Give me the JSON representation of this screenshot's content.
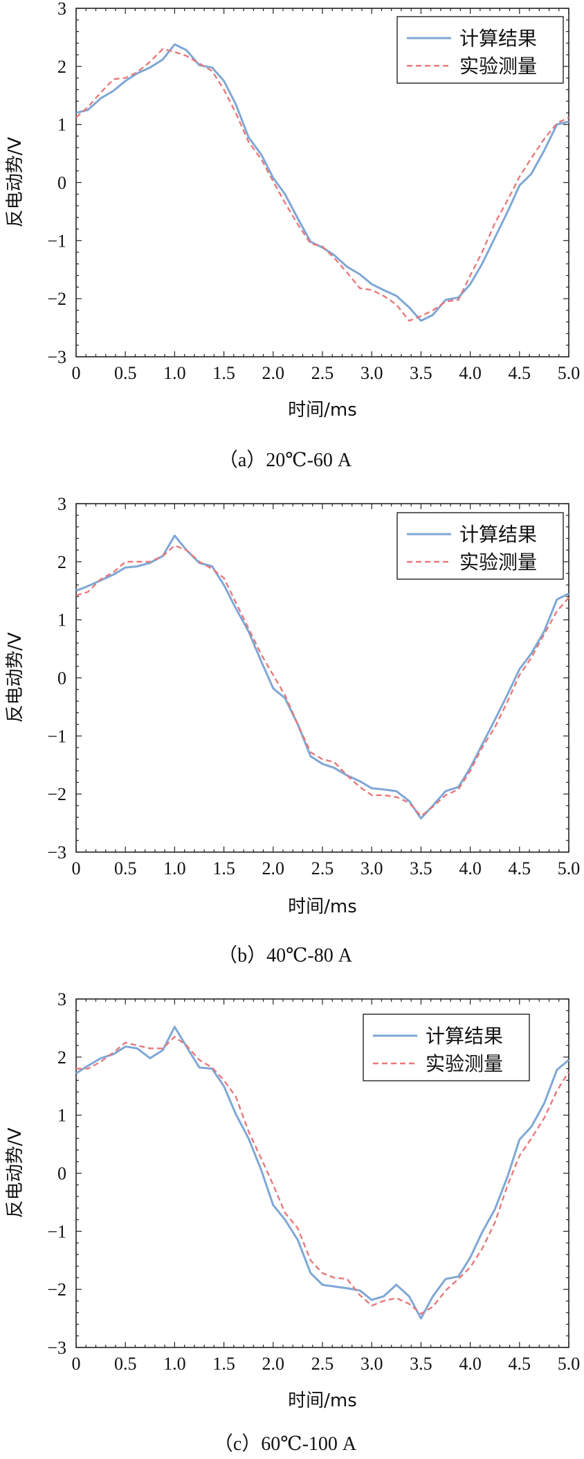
{
  "chart_data": [
    {
      "type": "line",
      "caption": "（a）20℃-60 A",
      "xlabel": "时间/ms",
      "ylabel": "反电动势/V",
      "xlim": [
        0,
        5.0
      ],
      "ylim": [
        -3,
        3
      ],
      "xticks": [
        "0",
        "0.5",
        "1.0",
        "1.5",
        "2.0",
        "2.5",
        "3.0",
        "3.5",
        "4.0",
        "4.5",
        "5.0"
      ],
      "yticks": [
        "3",
        "2",
        "1",
        "0",
        "−1",
        "−2",
        "−3"
      ],
      "legend_position": "top-right",
      "series": [
        {
          "name": "计算结果",
          "color": "#7ea7d6",
          "dash": "solid",
          "points": [
            [
              0,
              1.2
            ],
            [
              0.12,
              1.25
            ],
            [
              0.25,
              1.45
            ],
            [
              0.38,
              1.58
            ],
            [
              0.5,
              1.75
            ],
            [
              0.62,
              1.88
            ],
            [
              0.75,
              1.98
            ],
            [
              0.88,
              2.12
            ],
            [
              1.0,
              2.38
            ],
            [
              1.12,
              2.28
            ],
            [
              1.25,
              2.02
            ],
            [
              1.38,
              1.98
            ],
            [
              1.5,
              1.75
            ],
            [
              1.62,
              1.35
            ],
            [
              1.75,
              0.78
            ],
            [
              1.88,
              0.48
            ],
            [
              2.0,
              0.08
            ],
            [
              2.12,
              -0.2
            ],
            [
              2.25,
              -0.62
            ],
            [
              2.38,
              -1.02
            ],
            [
              2.5,
              -1.12
            ],
            [
              2.62,
              -1.25
            ],
            [
              2.75,
              -1.45
            ],
            [
              2.88,
              -1.58
            ],
            [
              3.0,
              -1.75
            ],
            [
              3.12,
              -1.85
            ],
            [
              3.25,
              -1.95
            ],
            [
              3.38,
              -2.15
            ],
            [
              3.5,
              -2.38
            ],
            [
              3.62,
              -2.28
            ],
            [
              3.75,
              -2.02
            ],
            [
              3.88,
              -1.98
            ],
            [
              4.0,
              -1.75
            ],
            [
              4.12,
              -1.4
            ],
            [
              4.25,
              -0.95
            ],
            [
              4.38,
              -0.5
            ],
            [
              4.5,
              -0.05
            ],
            [
              4.62,
              0.15
            ],
            [
              4.75,
              0.55
            ],
            [
              4.88,
              1.0
            ],
            [
              5.0,
              1.05
            ]
          ]
        },
        {
          "name": "实验测量",
          "color": "#e8787a",
          "dash": "dashed",
          "points": [
            [
              0,
              1.12
            ],
            [
              0.12,
              1.3
            ],
            [
              0.25,
              1.55
            ],
            [
              0.38,
              1.78
            ],
            [
              0.5,
              1.8
            ],
            [
              0.62,
              1.9
            ],
            [
              0.75,
              2.08
            ],
            [
              0.88,
              2.3
            ],
            [
              1.0,
              2.25
            ],
            [
              1.12,
              2.18
            ],
            [
              1.25,
              2.05
            ],
            [
              1.38,
              1.92
            ],
            [
              1.5,
              1.6
            ],
            [
              1.62,
              1.2
            ],
            [
              1.75,
              0.7
            ],
            [
              1.88,
              0.4
            ],
            [
              2.0,
              0.02
            ],
            [
              2.12,
              -0.35
            ],
            [
              2.25,
              -0.72
            ],
            [
              2.38,
              -1.05
            ],
            [
              2.5,
              -1.1
            ],
            [
              2.62,
              -1.3
            ],
            [
              2.75,
              -1.55
            ],
            [
              2.88,
              -1.82
            ],
            [
              3.0,
              -1.85
            ],
            [
              3.12,
              -1.95
            ],
            [
              3.25,
              -2.1
            ],
            [
              3.38,
              -2.38
            ],
            [
              3.5,
              -2.3
            ],
            [
              3.62,
              -2.2
            ],
            [
              3.75,
              -2.05
            ],
            [
              3.88,
              -2.02
            ],
            [
              4.0,
              -1.6
            ],
            [
              4.12,
              -1.2
            ],
            [
              4.25,
              -0.7
            ],
            [
              4.38,
              -0.3
            ],
            [
              4.5,
              0.1
            ],
            [
              4.62,
              0.42
            ],
            [
              4.75,
              0.75
            ],
            [
              4.88,
              1.02
            ],
            [
              5.0,
              1.12
            ]
          ]
        }
      ]
    },
    {
      "type": "line",
      "caption": "（b）40℃-80 A",
      "xlabel": "时间/ms",
      "ylabel": "反电动势/V",
      "xlim": [
        0,
        5.0
      ],
      "ylim": [
        -3,
        3
      ],
      "xticks": [
        "0",
        "0.5",
        "1.0",
        "1.5",
        "2.0",
        "2.5",
        "3.0",
        "3.5",
        "4.0",
        "4.5",
        "5.0"
      ],
      "yticks": [
        "3",
        "2",
        "1",
        "0",
        "−1",
        "−2",
        "−3"
      ],
      "legend_position": "top-right",
      "series": [
        {
          "name": "计算结果",
          "color": "#7ea7d6",
          "dash": "solid",
          "points": [
            [
              0,
              1.5
            ],
            [
              0.12,
              1.58
            ],
            [
              0.25,
              1.68
            ],
            [
              0.38,
              1.78
            ],
            [
              0.5,
              1.9
            ],
            [
              0.62,
              1.92
            ],
            [
              0.75,
              1.98
            ],
            [
              0.88,
              2.1
            ],
            [
              1.0,
              2.45
            ],
            [
              1.12,
              2.2
            ],
            [
              1.25,
              1.98
            ],
            [
              1.38,
              1.92
            ],
            [
              1.5,
              1.6
            ],
            [
              1.62,
              1.2
            ],
            [
              1.75,
              0.8
            ],
            [
              1.88,
              0.28
            ],
            [
              2.0,
              -0.18
            ],
            [
              2.12,
              -0.35
            ],
            [
              2.25,
              -0.8
            ],
            [
              2.38,
              -1.35
            ],
            [
              2.5,
              -1.48
            ],
            [
              2.62,
              -1.55
            ],
            [
              2.75,
              -1.68
            ],
            [
              2.88,
              -1.78
            ],
            [
              3.0,
              -1.9
            ],
            [
              3.12,
              -1.92
            ],
            [
              3.25,
              -1.95
            ],
            [
              3.38,
              -2.12
            ],
            [
              3.5,
              -2.42
            ],
            [
              3.62,
              -2.2
            ],
            [
              3.75,
              -1.95
            ],
            [
              3.88,
              -1.88
            ],
            [
              4.0,
              -1.55
            ],
            [
              4.12,
              -1.15
            ],
            [
              4.25,
              -0.72
            ],
            [
              4.38,
              -0.28
            ],
            [
              4.5,
              0.15
            ],
            [
              4.62,
              0.42
            ],
            [
              4.75,
              0.8
            ],
            [
              4.88,
              1.35
            ],
            [
              5.0,
              1.45
            ]
          ]
        },
        {
          "name": "实验测量",
          "color": "#e8787a",
          "dash": "dashed",
          "points": [
            [
              0,
              1.42
            ],
            [
              0.12,
              1.48
            ],
            [
              0.25,
              1.7
            ],
            [
              0.38,
              1.82
            ],
            [
              0.5,
              2.0
            ],
            [
              0.62,
              2.0
            ],
            [
              0.75,
              2.0
            ],
            [
              0.88,
              2.1
            ],
            [
              1.0,
              2.28
            ],
            [
              1.12,
              2.2
            ],
            [
              1.25,
              2.0
            ],
            [
              1.38,
              1.88
            ],
            [
              1.5,
              1.72
            ],
            [
              1.62,
              1.3
            ],
            [
              1.75,
              0.85
            ],
            [
              1.88,
              0.4
            ],
            [
              2.0,
              0.05
            ],
            [
              2.12,
              -0.3
            ],
            [
              2.25,
              -0.8
            ],
            [
              2.38,
              -1.28
            ],
            [
              2.5,
              -1.4
            ],
            [
              2.62,
              -1.45
            ],
            [
              2.75,
              -1.68
            ],
            [
              2.88,
              -1.88
            ],
            [
              3.0,
              -2.02
            ],
            [
              3.12,
              -2.02
            ],
            [
              3.25,
              -2.05
            ],
            [
              3.38,
              -2.15
            ],
            [
              3.5,
              -2.38
            ],
            [
              3.62,
              -2.22
            ],
            [
              3.75,
              -2.02
            ],
            [
              3.88,
              -1.92
            ],
            [
              4.0,
              -1.6
            ],
            [
              4.12,
              -1.2
            ],
            [
              4.25,
              -0.85
            ],
            [
              4.38,
              -0.4
            ],
            [
              4.5,
              0.05
            ],
            [
              4.62,
              0.35
            ],
            [
              4.75,
              0.75
            ],
            [
              4.88,
              1.15
            ],
            [
              5.0,
              1.38
            ]
          ]
        }
      ]
    },
    {
      "type": "line",
      "caption": "（c）60℃-100 A",
      "xlabel": "时间/ms",
      "ylabel": "反电动势/V",
      "xlim": [
        0,
        5.0
      ],
      "ylim": [
        -3,
        3
      ],
      "xticks": [
        "0",
        "0.5",
        "1.0",
        "1.5",
        "2.0",
        "2.5",
        "3.0",
        "3.5",
        "4.0",
        "4.5",
        "5.0"
      ],
      "yticks": [
        "3",
        "2",
        "1",
        "0",
        "−1",
        "−2",
        "−3"
      ],
      "legend_position": "top-right",
      "series": [
        {
          "name": "计算结果",
          "color": "#7ea7d6",
          "dash": "solid",
          "points": [
            [
              0,
              1.72
            ],
            [
              0.12,
              1.85
            ],
            [
              0.25,
              1.98
            ],
            [
              0.38,
              2.05
            ],
            [
              0.5,
              2.18
            ],
            [
              0.62,
              2.15
            ],
            [
              0.75,
              1.98
            ],
            [
              0.88,
              2.12
            ],
            [
              1.0,
              2.52
            ],
            [
              1.12,
              2.18
            ],
            [
              1.25,
              1.82
            ],
            [
              1.38,
              1.8
            ],
            [
              1.5,
              1.5
            ],
            [
              1.62,
              1.02
            ],
            [
              1.75,
              0.6
            ],
            [
              1.88,
              0.05
            ],
            [
              2.0,
              -0.55
            ],
            [
              2.12,
              -0.8
            ],
            [
              2.25,
              -1.15
            ],
            [
              2.38,
              -1.72
            ],
            [
              2.5,
              -1.92
            ],
            [
              2.62,
              -1.95
            ],
            [
              2.75,
              -1.98
            ],
            [
              2.88,
              -2.02
            ],
            [
              3.0,
              -2.18
            ],
            [
              3.12,
              -2.12
            ],
            [
              3.25,
              -1.92
            ],
            [
              3.38,
              -2.12
            ],
            [
              3.5,
              -2.5
            ],
            [
              3.62,
              -2.12
            ],
            [
              3.75,
              -1.82
            ],
            [
              3.88,
              -1.78
            ],
            [
              4.0,
              -1.45
            ],
            [
              4.12,
              -1.02
            ],
            [
              4.25,
              -0.62
            ],
            [
              4.38,
              -0.05
            ],
            [
              4.5,
              0.58
            ],
            [
              4.62,
              0.8
            ],
            [
              4.75,
              1.2
            ],
            [
              4.88,
              1.78
            ],
            [
              5.0,
              1.95
            ]
          ]
        },
        {
          "name": "实验测量",
          "color": "#e8787a",
          "dash": "dashed",
          "points": [
            [
              0,
              1.8
            ],
            [
              0.12,
              1.8
            ],
            [
              0.25,
              1.92
            ],
            [
              0.38,
              2.08
            ],
            [
              0.5,
              2.25
            ],
            [
              0.62,
              2.2
            ],
            [
              0.75,
              2.15
            ],
            [
              0.88,
              2.15
            ],
            [
              1.0,
              2.35
            ],
            [
              1.12,
              2.2
            ],
            [
              1.25,
              1.95
            ],
            [
              1.38,
              1.82
            ],
            [
              1.5,
              1.6
            ],
            [
              1.62,
              1.32
            ],
            [
              1.75,
              0.72
            ],
            [
              1.88,
              0.25
            ],
            [
              2.0,
              -0.2
            ],
            [
              2.12,
              -0.68
            ],
            [
              2.25,
              -0.95
            ],
            [
              2.38,
              -1.5
            ],
            [
              2.5,
              -1.72
            ],
            [
              2.62,
              -1.8
            ],
            [
              2.75,
              -1.82
            ],
            [
              2.88,
              -2.1
            ],
            [
              3.0,
              -2.28
            ],
            [
              3.12,
              -2.2
            ],
            [
              3.25,
              -2.15
            ],
            [
              3.38,
              -2.25
            ],
            [
              3.5,
              -2.42
            ],
            [
              3.62,
              -2.3
            ],
            [
              3.75,
              -2.02
            ],
            [
              3.88,
              -1.82
            ],
            [
              4.0,
              -1.62
            ],
            [
              4.12,
              -1.3
            ],
            [
              4.25,
              -0.85
            ],
            [
              4.38,
              -0.2
            ],
            [
              4.5,
              0.3
            ],
            [
              4.62,
              0.6
            ],
            [
              4.75,
              0.95
            ],
            [
              4.88,
              1.42
            ],
            [
              5.0,
              1.75
            ]
          ]
        }
      ]
    }
  ]
}
